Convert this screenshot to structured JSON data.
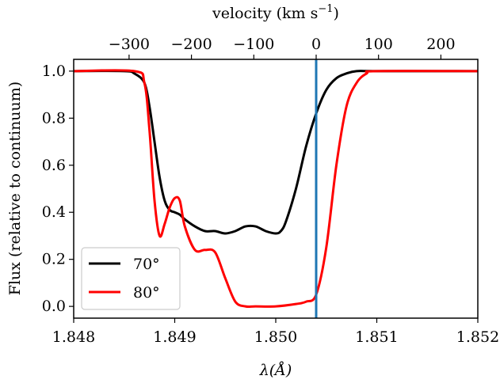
{
  "chart_data": {
    "type": "line",
    "xlabel": "λ(Å)",
    "ylabel": "Flux (relative to continuum)",
    "top_axis_label_main": "velocity (km s",
    "top_axis_label_exp": "−1",
    "top_axis_label_close": ")",
    "xlim": [
      1.848,
      1.852
    ],
    "ylim": [
      -0.05,
      1.05
    ],
    "x_ticks": [
      1.848,
      1.849,
      1.85,
      1.851,
      1.852
    ],
    "x_tick_labels": [
      "1.848",
      "1.849",
      "1.850",
      "1.851",
      "1.852"
    ],
    "y_ticks": [
      0.0,
      0.2,
      0.4,
      0.6,
      0.8,
      1.0
    ],
    "y_tick_labels": [
      "0.0",
      "0.2",
      "0.4",
      "0.6",
      "0.8",
      "1.0"
    ],
    "top_ticks": [
      -300,
      -200,
      -100,
      0,
      100,
      200
    ],
    "top_tick_labels": [
      "−300",
      "−200",
      "−100",
      "0",
      "100",
      "200"
    ],
    "velocity_zero_wavelength": 1.8504,
    "velocity_per_angstrom": 162000,
    "vertical_line": {
      "x": 1.8504,
      "color": "#1f77b4"
    },
    "legend_position": "lower-left",
    "series": [
      {
        "name": "70°",
        "color": "#000000",
        "x": [
          1.848,
          1.8485,
          1.8486,
          1.8487,
          1.84875,
          1.8488,
          1.84885,
          1.8489,
          1.84895,
          1.849,
          1.84905,
          1.8491,
          1.8492,
          1.8493,
          1.8494,
          1.8495,
          1.8496,
          1.8497,
          1.8498,
          1.8499,
          1.85,
          1.85005,
          1.8501,
          1.8502,
          1.8503,
          1.8504,
          1.8505,
          1.8506,
          1.8507,
          1.8508,
          1.851,
          1.852
        ],
        "y": [
          1.0,
          1.0,
          0.99,
          0.95,
          0.85,
          0.7,
          0.55,
          0.45,
          0.41,
          0.4,
          0.39,
          0.37,
          0.34,
          0.32,
          0.32,
          0.31,
          0.32,
          0.34,
          0.34,
          0.32,
          0.31,
          0.32,
          0.36,
          0.5,
          0.68,
          0.82,
          0.92,
          0.97,
          0.99,
          1.0,
          1.0,
          1.0
        ]
      },
      {
        "name": "80°",
        "color": "#ff0000",
        "x": [
          1.848,
          1.8486,
          1.8487,
          1.84875,
          1.8488,
          1.84885,
          1.8489,
          1.84895,
          1.849,
          1.84905,
          1.8491,
          1.8492,
          1.8493,
          1.8494,
          1.8495,
          1.8496,
          1.8497,
          1.8498,
          1.85,
          1.8502,
          1.8503,
          1.8504,
          1.8505,
          1.8506,
          1.8507,
          1.8508,
          1.8509,
          1.851,
          1.852
        ],
        "y": [
          1.0,
          1.0,
          0.95,
          0.75,
          0.45,
          0.3,
          0.35,
          0.42,
          0.46,
          0.45,
          0.34,
          0.24,
          0.24,
          0.23,
          0.12,
          0.02,
          0.0,
          0.0,
          0.0,
          0.01,
          0.02,
          0.05,
          0.25,
          0.6,
          0.85,
          0.95,
          0.99,
          1.0,
          1.0
        ]
      }
    ]
  }
}
